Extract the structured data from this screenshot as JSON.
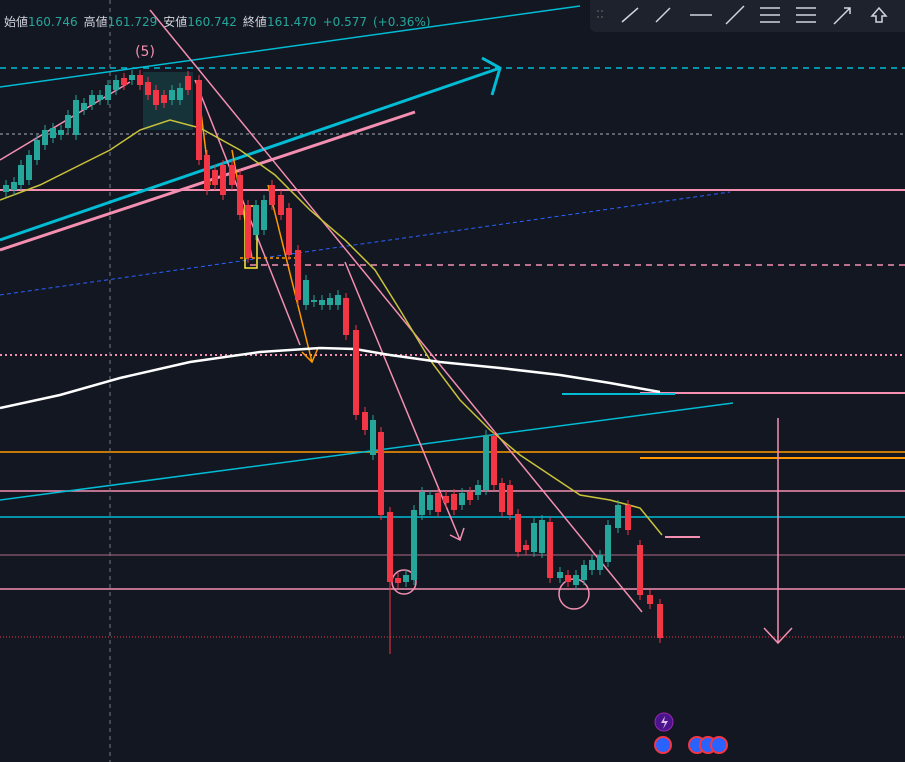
{
  "header": {
    "items": [
      {
        "label": "始値",
        "value": "160.746"
      },
      {
        "label": "高値",
        "value": "161.729"
      },
      {
        "label": "安値",
        "value": "160.742"
      },
      {
        "label": "終値",
        "value": "161.470"
      }
    ],
    "change": "+0.577",
    "change_pct": "(+0.36%)"
  },
  "annotation": "(5)"
}
